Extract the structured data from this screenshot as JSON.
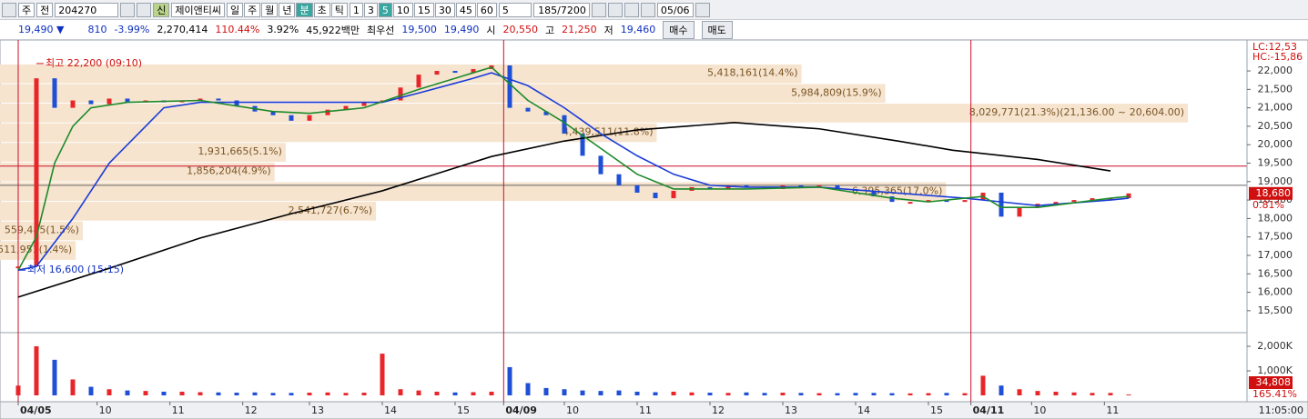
{
  "toolbar": {
    "market": "주",
    "scope": "전",
    "code": "204270",
    "flag": "신",
    "name": "제이앤티씨",
    "periods": [
      {
        "label": "일"
      },
      {
        "label": "주"
      },
      {
        "label": "월"
      },
      {
        "label": "년"
      },
      {
        "label": "분",
        "active": true
      },
      {
        "label": "초"
      },
      {
        "label": "틱"
      }
    ],
    "intervals": [
      {
        "label": "1"
      },
      {
        "label": "3"
      },
      {
        "label": "5",
        "active": true
      },
      {
        "label": "10"
      },
      {
        "label": "15"
      },
      {
        "label": "30"
      },
      {
        "label": "45"
      },
      {
        "label": "60"
      }
    ],
    "unit": "5",
    "count": "185/7200",
    "date": "05/06"
  },
  "info": {
    "price": "19,490 ▼",
    "change": "810",
    "change_pct": "-3.99%",
    "volume": "2,270,414",
    "volume_pct": "110.44%",
    "turnover": "3.92%",
    "amount": "45,922백만",
    "best_label": "최우선",
    "ask": "19,500",
    "bid": "19,490",
    "open_label": "시",
    "open": "20,550",
    "high_label": "고",
    "high": "21,250",
    "low_label": "저",
    "low": "19,460",
    "buy": "매수",
    "sell": "매도"
  },
  "chart_data": {
    "type": "candlestick",
    "x": [
      0,
      3,
      6,
      9,
      12,
      15,
      18,
      21,
      24,
      27,
      30,
      33,
      36,
      39,
      42,
      45,
      48,
      51,
      54,
      57,
      60,
      63,
      66,
      69,
      72,
      75,
      78,
      81,
      84,
      87,
      90,
      93,
      96,
      99,
      102,
      105,
      108,
      111,
      114,
      117,
      120,
      123,
      126,
      129,
      132,
      135,
      138,
      141,
      144,
      147,
      150,
      153,
      156,
      159,
      162,
      165,
      168,
      171,
      174,
      177,
      180,
      183
    ],
    "close": [
      16700,
      21800,
      21000,
      21200,
      21100,
      21250,
      21150,
      21200,
      21150,
      21200,
      21250,
      21200,
      21050,
      20900,
      20800,
      20650,
      20800,
      20950,
      21050,
      21150,
      21200,
      21550,
      21900,
      22000,
      21950,
      22050,
      22150,
      21000,
      20900,
      20800,
      20300,
      19700,
      19200,
      18900,
      18700,
      18550,
      18750,
      18850,
      18800,
      18900,
      18850,
      18800,
      18900,
      18850,
      18900,
      18800,
      18750,
      18600,
      18450,
      18450,
      18500,
      18450,
      18500,
      18700,
      18050,
      18300,
      18400,
      18450,
      18500,
      18550,
      18550,
      18680
    ],
    "up_color": "#e8262a",
    "down_color": "#1f4fd6",
    "xlim": [
      -3,
      202.5
    ],
    "xticks": [
      {
        "value": 0,
        "label": "04/05"
      },
      {
        "value": 13,
        "label": "10"
      },
      {
        "value": 25,
        "label": "11"
      },
      {
        "value": 37,
        "label": "12"
      },
      {
        "value": 48,
        "label": "13"
      },
      {
        "value": 60,
        "label": "14"
      },
      {
        "value": 72,
        "label": "15"
      },
      {
        "value": 80,
        "label": "04/09"
      },
      {
        "value": 90,
        "label": "10"
      },
      {
        "value": 102,
        "label": "11"
      },
      {
        "value": 114,
        "label": "12"
      },
      {
        "value": 126,
        "label": "13"
      },
      {
        "value": 138,
        "label": "14"
      },
      {
        "value": 150,
        "label": "15"
      },
      {
        "value": 157,
        "label": "04/11"
      },
      {
        "value": 167,
        "label": "10"
      },
      {
        "value": 179,
        "label": "11"
      }
    ],
    "ylim": [
      14930,
      22740
    ],
    "yticks": [
      {
        "value": 15500,
        "label": "15,500"
      },
      {
        "value": 16000,
        "label": "16,000"
      },
      {
        "value": 16500,
        "label": "16,500"
      },
      {
        "value": 17000,
        "label": "17,000"
      },
      {
        "value": 17500,
        "label": "17,500"
      },
      {
        "value": 18000,
        "label": "18,000"
      },
      {
        "value": 18500,
        "label": "18,500"
      },
      {
        "value": 19000,
        "label": "19,000"
      },
      {
        "value": 19500,
        "label": "19,500"
      },
      {
        "value": 20000,
        "label": "20,000"
      },
      {
        "value": 20500,
        "label": "20,500"
      },
      {
        "value": 21000,
        "label": "21,000"
      },
      {
        "value": 21500,
        "label": "21,500"
      },
      {
        "value": 22000,
        "label": "22,000"
      }
    ],
    "moving_averages": [
      {
        "color": "#000000",
        "x": [
          0,
          15,
          30,
          45,
          60,
          78,
          90,
          102,
          118,
          132,
          145,
          154,
          168,
          180
        ],
        "values": [
          15870,
          16650,
          17470,
          18130,
          18750,
          19680,
          20100,
          20400,
          20600,
          20430,
          20100,
          19850,
          19600,
          19290
        ]
      },
      {
        "color": "#1a3cd8",
        "x": [
          0,
          3,
          9,
          15,
          21,
          24,
          30,
          45,
          60,
          66,
          75,
          78,
          84,
          90,
          96,
          102,
          108,
          114,
          120,
          132,
          144,
          156,
          162,
          168,
          180,
          183
        ],
        "values": [
          16600,
          16700,
          18000,
          19500,
          20500,
          21000,
          21150,
          21150,
          21150,
          21400,
          21800,
          21950,
          21600,
          21000,
          20300,
          19700,
          19200,
          18900,
          18850,
          18850,
          18700,
          18550,
          18450,
          18350,
          18500,
          18550
        ]
      },
      {
        "color": "#1d8a2a",
        "x": [
          0,
          3,
          6,
          9,
          12,
          18,
          30,
          42,
          48,
          57,
          66,
          75,
          78,
          84,
          90,
          96,
          102,
          108,
          120,
          132,
          144,
          150,
          156,
          159,
          162,
          168,
          180,
          183
        ],
        "values": [
          16600,
          17500,
          19500,
          20500,
          21000,
          21150,
          21200,
          20900,
          20850,
          21000,
          21500,
          21950,
          22100,
          21200,
          20600,
          19900,
          19200,
          18800,
          18800,
          18850,
          18550,
          18450,
          18550,
          18600,
          18300,
          18300,
          18550,
          18600
        ]
      }
    ],
    "volume": {
      "values": [
        400,
        2000,
        1450,
        650,
        350,
        250,
        200,
        180,
        150,
        150,
        130,
        120,
        110,
        120,
        100,
        100,
        110,
        120,
        100,
        110,
        1700,
        250,
        200,
        150,
        120,
        130,
        150,
        1150,
        500,
        300,
        250,
        200,
        180,
        200,
        150,
        130,
        150,
        120,
        110,
        100,
        120,
        100,
        110,
        100,
        90,
        90,
        100,
        100,
        90,
        80,
        90,
        100,
        90,
        800,
        400,
        250,
        180,
        150,
        120,
        100,
        100,
        34.808
      ],
      "ylim": [
        0,
        2500
      ],
      "yticks": [
        {
          "value": 1000,
          "label": "1,000K"
        },
        {
          "value": 2000,
          "label": "2,000K"
        }
      ],
      "current": {
        "value": 34.808,
        "label": "34,808"
      },
      "ratio": "165.41%"
    },
    "volume_profile": {
      "color": "#f6e4cf",
      "text_color": "#7a5524",
      "bands": [
        {
          "high": 22200,
          "low": 21668,
          "value": 5418161,
          "label": "5,418,161(14.4%)"
        },
        {
          "high": 21668,
          "low": 21136,
          "value": 5984809,
          "label": "5,984,809(15.9%)"
        },
        {
          "high": 21136,
          "low": 20604,
          "value": 8029771,
          "label": "8,029,771(21.3%)(21,136.00 ~ 20,604.00)"
        },
        {
          "high": 20604,
          "low": 20072,
          "value": 4439511,
          "label": "4,439,511(11.8%)"
        },
        {
          "high": 20072,
          "low": 19540,
          "value": 1931665,
          "label": "1,931,665(5.1%)"
        },
        {
          "high": 19540,
          "low": 19008,
          "value": 1856204,
          "label": "1,856,204(4.9%)"
        },
        {
          "high": 19008,
          "low": 18476,
          "value": 6395365,
          "label": "6,395,365(17.0%)"
        },
        {
          "high": 18476,
          "low": 17944,
          "value": 2541727,
          "label": "2,541,727(6.7%)"
        },
        {
          "high": 17944,
          "low": 17412,
          "value": 559485,
          "label": "559,485(1.5%)"
        },
        {
          "high": 17412,
          "low": 16880,
          "value": 511951,
          "label": "511,951(1.4%)"
        }
      ]
    },
    "annotations": [
      {
        "label": "최고 22,200 (09:10)",
        "price": 22200,
        "x": 3,
        "color": "#d01010"
      },
      {
        "label": "최저 16,600 (15:15)",
        "price": 16600,
        "x": 0,
        "color": "#1030c0"
      }
    ],
    "ref_lines": [
      {
        "value": 19420,
        "color": "#c8102e"
      },
      {
        "value": 18900,
        "color": "#666666"
      }
    ],
    "current_price": {
      "value": 18680,
      "label": "18,680",
      "change": "0.81%"
    },
    "corner_labels": [
      "LC:12,53",
      "HC:-15,86"
    ],
    "time": "11:05:00"
  }
}
